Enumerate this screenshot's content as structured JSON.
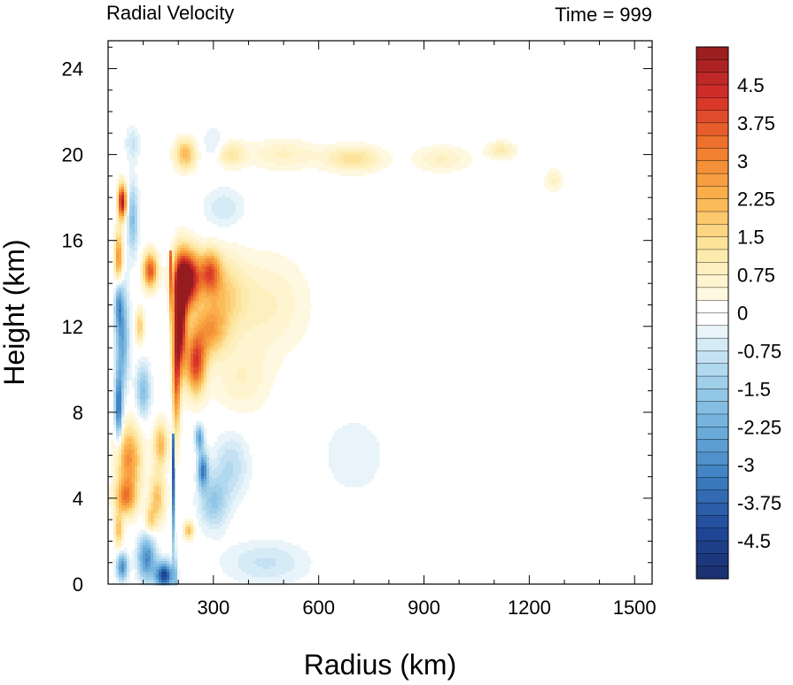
{
  "chart_data": {
    "type": "heatmap",
    "title_left": "Radial Velocity",
    "title_right": "Time = 999",
    "xlabel": "Radius (km)",
    "ylabel": "Height (km)",
    "xlim": [
      0,
      1550
    ],
    "ylim": [
      0,
      25.3
    ],
    "xticks": [
      300,
      600,
      900,
      1200,
      1500
    ],
    "yticks": [
      0,
      4,
      8,
      12,
      16,
      20,
      24
    ],
    "colorbar": {
      "levels_min": -5.25,
      "levels_max": 5.25,
      "level_step": 0.25,
      "tick_labels": [
        "4.5",
        "3.75",
        "3",
        "2.25",
        "1.5",
        "0.75",
        "0",
        "-0.75",
        "-1.5",
        "-2.25",
        "-3",
        "-3.75",
        "-4.5"
      ],
      "tick_values": [
        4.5,
        3.75,
        3,
        2.25,
        1.5,
        0.75,
        0,
        -0.75,
        -1.5,
        -2.25,
        -3,
        -3.75,
        -4.5
      ],
      "color_stops": [
        {
          "v": -5.25,
          "c": "#1a2d6b"
        },
        {
          "v": -4.25,
          "c": "#20499a"
        },
        {
          "v": -3.25,
          "c": "#3d7fc0"
        },
        {
          "v": -2.25,
          "c": "#6fb0dc"
        },
        {
          "v": -1.25,
          "c": "#a7d3ec"
        },
        {
          "v": -0.4,
          "c": "#e6f3fa"
        },
        {
          "v": 0,
          "c": "#ffffff"
        },
        {
          "v": 0.4,
          "c": "#fff8df"
        },
        {
          "v": 1.25,
          "c": "#fde8a4"
        },
        {
          "v": 2.25,
          "c": "#fbb44d"
        },
        {
          "v": 3.25,
          "c": "#f07a2c"
        },
        {
          "v": 4.25,
          "c": "#d7302a"
        },
        {
          "v": 5.25,
          "c": "#941b1e"
        }
      ]
    },
    "features": [
      {
        "r": 225,
        "z": 14.2,
        "sr": 35,
        "sz": 1.3,
        "v": 6
      },
      {
        "r": 205,
        "z": 12.3,
        "sr": 18,
        "sz": 2.3,
        "v": 5.5
      },
      {
        "r": 195,
        "z": 9.5,
        "sr": 10,
        "sz": 2.6,
        "v": 3.2
      },
      {
        "r": 290,
        "z": 14.5,
        "sr": 30,
        "sz": 1.0,
        "v": 3.2
      },
      {
        "r": 250,
        "z": 10.3,
        "sr": 28,
        "sz": 1.4,
        "v": 4.0
      },
      {
        "r": 290,
        "z": 11.8,
        "sr": 45,
        "sz": 1.2,
        "v": 2.2
      },
      {
        "r": 330,
        "z": 13.5,
        "sr": 60,
        "sz": 1.8,
        "v": 1.4
      },
      {
        "r": 450,
        "z": 13.0,
        "sr": 120,
        "sz": 2.3,
        "v": 0.8
      },
      {
        "r": 380,
        "z": 9.5,
        "sr": 80,
        "sz": 1.6,
        "v": 0.7
      },
      {
        "r": 40,
        "z": 17.8,
        "sr": 12,
        "sz": 0.8,
        "v": 5.0
      },
      {
        "r": 30,
        "z": 15.2,
        "sr": 12,
        "sz": 1.2,
        "v": 3.0
      },
      {
        "r": 120,
        "z": 14.6,
        "sr": 20,
        "sz": 0.8,
        "v": 3.8
      },
      {
        "r": 90,
        "z": 12.0,
        "sr": 12,
        "sz": 0.8,
        "v": 1.8
      },
      {
        "r": 60,
        "z": 5.8,
        "sr": 35,
        "sz": 1.6,
        "v": 2.8
      },
      {
        "r": 50,
        "z": 4.0,
        "sr": 30,
        "sz": 0.8,
        "v": 2.6
      },
      {
        "r": 150,
        "z": 6.5,
        "sr": 20,
        "sz": 1.0,
        "v": 2.2
      },
      {
        "r": 140,
        "z": 4.0,
        "sr": 22,
        "sz": 1.2,
        "v": 2.0
      },
      {
        "r": 30,
        "z": 2.5,
        "sr": 12,
        "sz": 0.8,
        "v": 2.0
      },
      {
        "r": 120,
        "z": 3.0,
        "sr": 14,
        "sz": 0.6,
        "v": 1.5
      },
      {
        "r": 230,
        "z": 2.5,
        "sr": 14,
        "sz": 0.4,
        "v": 2.2
      },
      {
        "r": 220,
        "z": 20.0,
        "sr": 30,
        "sz": 0.7,
        "v": 2.2
      },
      {
        "r": 350,
        "z": 20.0,
        "sr": 40,
        "sz": 0.6,
        "v": 1.2
      },
      {
        "r": 500,
        "z": 20.0,
        "sr": 100,
        "sz": 0.7,
        "v": 0.8
      },
      {
        "r": 700,
        "z": 19.8,
        "sr": 80,
        "sz": 0.6,
        "v": 1.4
      },
      {
        "r": 950,
        "z": 19.8,
        "sr": 80,
        "sz": 0.6,
        "v": 0.8
      },
      {
        "r": 1120,
        "z": 20.2,
        "sr": 40,
        "sz": 0.4,
        "v": 1.1
      },
      {
        "r": 1270,
        "z": 18.8,
        "sr": 25,
        "sz": 0.5,
        "v": 0.8
      },
      {
        "r": 70,
        "z": 20.5,
        "sr": 20,
        "sz": 0.8,
        "v": -0.8
      },
      {
        "r": 70,
        "z": 17.0,
        "sr": 15,
        "sz": 1.6,
        "v": -1.8
      },
      {
        "r": 40,
        "z": 11.5,
        "sr": 18,
        "sz": 2.4,
        "v": -2.5
      },
      {
        "r": 30,
        "z": 8.2,
        "sr": 10,
        "sz": 1.5,
        "v": -3.5
      },
      {
        "r": 30,
        "z": 13.0,
        "sr": 10,
        "sz": 1.0,
        "v": -2.0
      },
      {
        "r": 100,
        "z": 9.0,
        "sr": 20,
        "sz": 1.2,
        "v": -1.8
      },
      {
        "r": 110,
        "z": 1.2,
        "sr": 25,
        "sz": 1.0,
        "v": -3.0
      },
      {
        "r": 160,
        "z": 0.4,
        "sr": 25,
        "sz": 0.6,
        "v": -4.5
      },
      {
        "r": 40,
        "z": 0.8,
        "sr": 15,
        "sz": 0.6,
        "v": -3.0
      },
      {
        "r": 270,
        "z": 5.3,
        "sr": 14,
        "sz": 0.8,
        "v": -3.2
      },
      {
        "r": 260,
        "z": 6.8,
        "sr": 12,
        "sz": 0.6,
        "v": -2.5
      },
      {
        "r": 300,
        "z": 3.8,
        "sr": 40,
        "sz": 1.2,
        "v": -1.5
      },
      {
        "r": 350,
        "z": 5.5,
        "sr": 50,
        "sz": 1.5,
        "v": -1.0
      },
      {
        "r": 450,
        "z": 1.0,
        "sr": 120,
        "sz": 1.0,
        "v": -0.8
      },
      {
        "r": 700,
        "z": 6.0,
        "sr": 90,
        "sz": 1.8,
        "v": -0.5
      },
      {
        "r": 300,
        "z": 20.5,
        "sr": 30,
        "sz": 0.8,
        "v": -0.6
      },
      {
        "r": 330,
        "z": 17.5,
        "sr": 60,
        "sz": 1.0,
        "v": -0.7
      }
    ],
    "eyewall": {
      "z_top": 15.5,
      "r_bottom": 190,
      "r_top": 178,
      "width": 3,
      "v_low": -4.0,
      "v_high": 3.0
    }
  }
}
